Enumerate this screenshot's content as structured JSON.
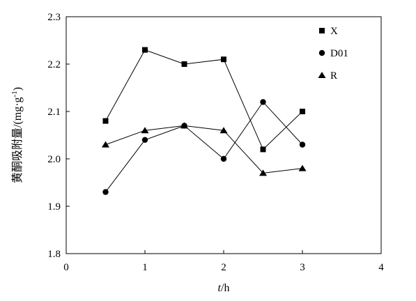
{
  "chart_data": {
    "type": "line",
    "title": "",
    "xlabel_var": "t",
    "xlabel_unit": "/h",
    "ylabel": "黄酮吸附量/(mg·g",
    "ylabel_sup": "-1",
    "ylabel_close": ")",
    "xlim": [
      0,
      4
    ],
    "ylim": [
      1.8,
      2.3
    ],
    "xticks": [
      0,
      1,
      2,
      3,
      4
    ],
    "xtick_labels": [
      "0",
      "1",
      "2",
      "3",
      "4"
    ],
    "yticks": [
      1.8,
      1.9,
      2.0,
      2.1,
      2.2,
      2.3
    ],
    "ytick_labels": [
      "1.8",
      "1.9",
      "2.0",
      "2.1",
      "2.2",
      "2.3"
    ],
    "grid": false,
    "legend_position": "top-right",
    "x": [
      0.5,
      1.0,
      1.5,
      2.0,
      2.5,
      3.0
    ],
    "series": [
      {
        "name": "X",
        "marker": "square",
        "values": [
          2.08,
          2.23,
          2.2,
          2.21,
          2.02,
          2.1
        ]
      },
      {
        "name": "D01",
        "marker": "circle",
        "values": [
          1.93,
          2.04,
          2.07,
          2.0,
          2.12,
          2.03
        ]
      },
      {
        "name": "R",
        "marker": "triangle",
        "values": [
          2.03,
          2.06,
          2.07,
          2.06,
          1.97,
          1.98
        ]
      }
    ]
  }
}
